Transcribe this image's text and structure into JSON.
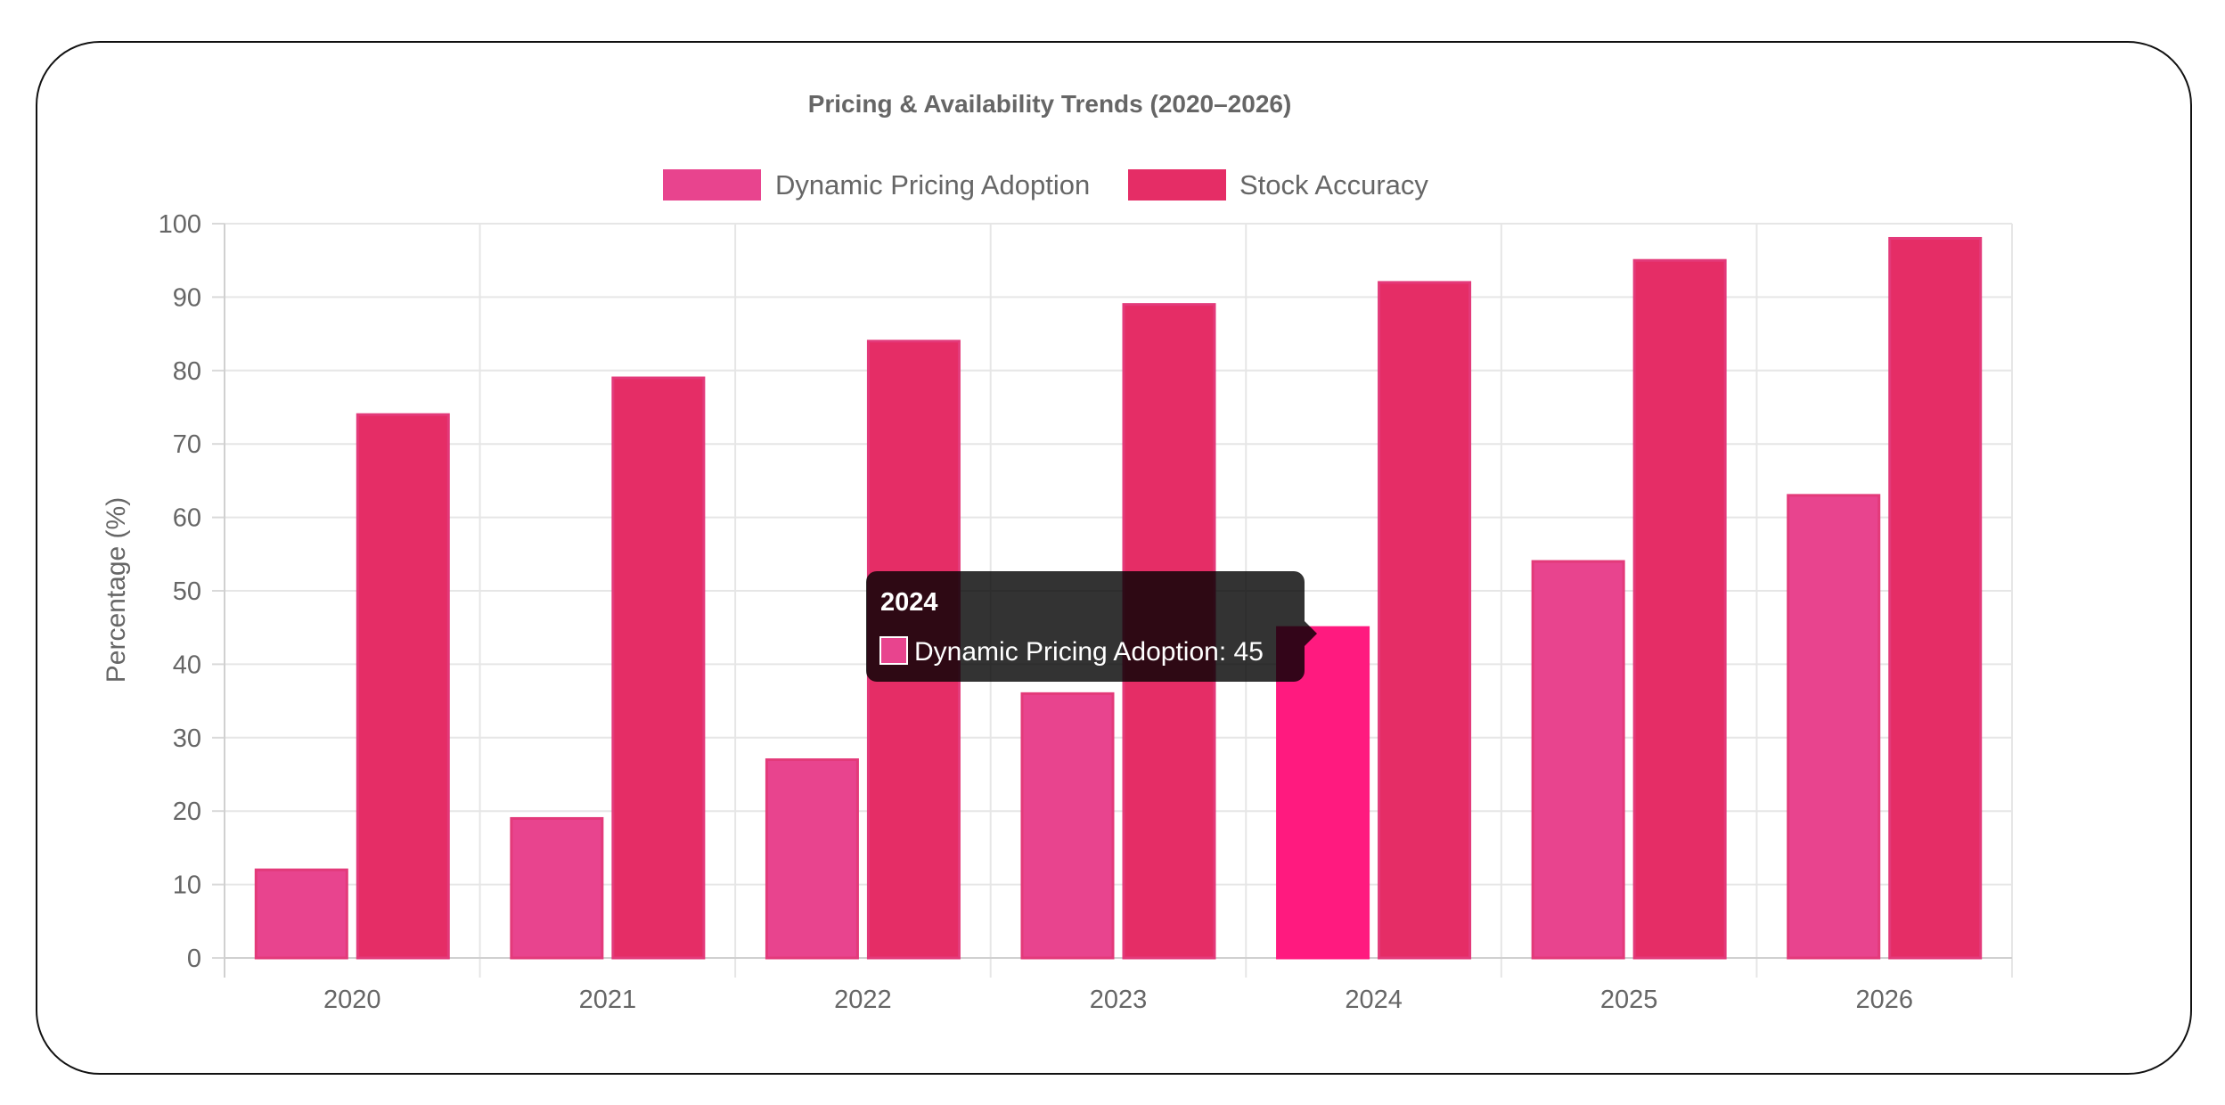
{
  "chart_data": {
    "type": "bar",
    "title": "Pricing & Availability Trends (2020–2026)",
    "xlabel": "",
    "ylabel": "Percentage (%)",
    "ylim": [
      0,
      100
    ],
    "yticks": [
      0,
      10,
      20,
      30,
      40,
      50,
      60,
      70,
      80,
      90,
      100
    ],
    "grid": true,
    "legend_position": "top",
    "categories": [
      "2020",
      "2021",
      "2022",
      "2023",
      "2024",
      "2025",
      "2026"
    ],
    "series": [
      {
        "name": "Dynamic Pricing Adoption",
        "color": "#e8448e",
        "values": [
          12,
          19,
          27,
          36,
          45,
          54,
          63
        ]
      },
      {
        "name": "Stock Accuracy",
        "color": "#e52d66",
        "values": [
          74,
          79,
          84,
          89,
          92,
          95,
          98
        ]
      }
    ],
    "highlight_color": "#ff1a7f",
    "tooltip": {
      "title": "2024",
      "label": "Dynamic Pricing Adoption: 45",
      "category_index": 4,
      "series_index": 0
    }
  }
}
